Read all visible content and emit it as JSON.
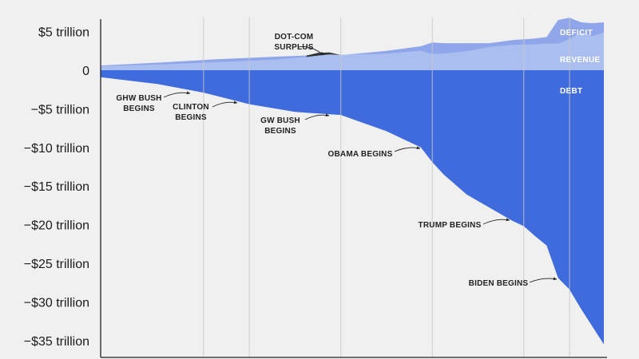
{
  "chart_data": {
    "type": "area",
    "x_range": [
      1980,
      2024
    ],
    "ylim": [
      -36,
      6
    ],
    "y_ticks": [
      {
        "value": 5,
        "label": "$5 trillion"
      },
      {
        "value": 0,
        "label": "0"
      },
      {
        "value": -5,
        "label": "−$5 trillion"
      },
      {
        "value": -10,
        "label": "−$10 trillion"
      },
      {
        "value": -15,
        "label": "−$15 trillion"
      },
      {
        "value": -20,
        "label": "−$20 trillion"
      },
      {
        "value": -25,
        "label": "−$25 trillion"
      },
      {
        "value": -30,
        "label": "−$30 trillion"
      },
      {
        "value": -35,
        "label": "−$35 trillion"
      }
    ],
    "grid": "vertical",
    "legend": "none",
    "vertical_gridlines": [
      1989,
      1993,
      2001,
      2009,
      2017,
      2021
    ],
    "colors": {
      "background": "#f0f0f0",
      "revenue": "#aabff0",
      "deficit": "#8fa6ea",
      "debt": "#3f6bdc",
      "surplus": "#333333",
      "gridline": "#c8c8c8",
      "axis": "#222222"
    },
    "series": [
      {
        "name": "DEFICIT",
        "x": [
          1980,
          1985,
          1990,
          1995,
          1998,
          2000,
          2001,
          2005,
          2008,
          2009,
          2010,
          2012,
          2014,
          2016,
          2018,
          2019,
          2020,
          2021,
          2022,
          2023,
          2024
        ],
        "values": [
          0.6,
          0.98,
          1.4,
          1.73,
          1.9,
          2.0,
          1.95,
          2.5,
          3.1,
          3.6,
          3.5,
          3.5,
          3.5,
          3.9,
          4.1,
          4.3,
          6.5,
          6.8,
          6.2,
          6.1,
          6.2
        ]
      },
      {
        "name": "REVENUE",
        "x": [
          1980,
          1985,
          1990,
          1995,
          1998,
          2000,
          2001,
          2005,
          2008,
          2009,
          2010,
          2012,
          2014,
          2016,
          2018,
          2019,
          2020,
          2021,
          2022,
          2023,
          2024
        ],
        "values": [
          0.52,
          0.73,
          1.03,
          1.35,
          1.72,
          2.03,
          1.99,
          2.15,
          2.52,
          2.1,
          2.16,
          2.45,
          3.02,
          3.27,
          3.33,
          3.46,
          3.42,
          4.05,
          4.9,
          4.4,
          4.9
        ]
      },
      {
        "name": "DEBT",
        "x": [
          1980,
          1985,
          1989,
          1993,
          1997,
          2001,
          2005,
          2008,
          2009,
          2010,
          2012,
          2014,
          2016,
          2017,
          2018,
          2019,
          2020,
          2021,
          2022,
          2023,
          2024
        ],
        "values": [
          -0.9,
          -1.8,
          -2.9,
          -4.4,
          -5.4,
          -5.8,
          -7.9,
          -10.0,
          -11.9,
          -13.5,
          -16.1,
          -17.8,
          -19.5,
          -20.2,
          -21.5,
          -22.7,
          -26.9,
          -28.4,
          -30.9,
          -33.2,
          -35.5
        ]
      }
    ],
    "annotations": [
      {
        "lines": [
          "DOT-COM",
          "SURPLUS"
        ],
        "x": 2000,
        "y": 2.0
      },
      {
        "lines": [
          "GHW BUSH",
          "BEGINS"
        ],
        "x": 1989,
        "y": -2.9
      },
      {
        "lines": [
          "CLINTON",
          "BEGINS"
        ],
        "x": 1993,
        "y": -4.4
      },
      {
        "lines": [
          "GW BUSH",
          "BEGINS"
        ],
        "x": 2001,
        "y": -5.8
      },
      {
        "lines": [
          "OBAMA BEGINS"
        ],
        "x": 2009,
        "y": -10.4
      },
      {
        "lines": [
          "TRUMP BEGINS"
        ],
        "x": 2017,
        "y": -19.5
      },
      {
        "lines": [
          "BIDEN BEGINS"
        ],
        "x": 2021,
        "y": -27.3
      }
    ]
  }
}
